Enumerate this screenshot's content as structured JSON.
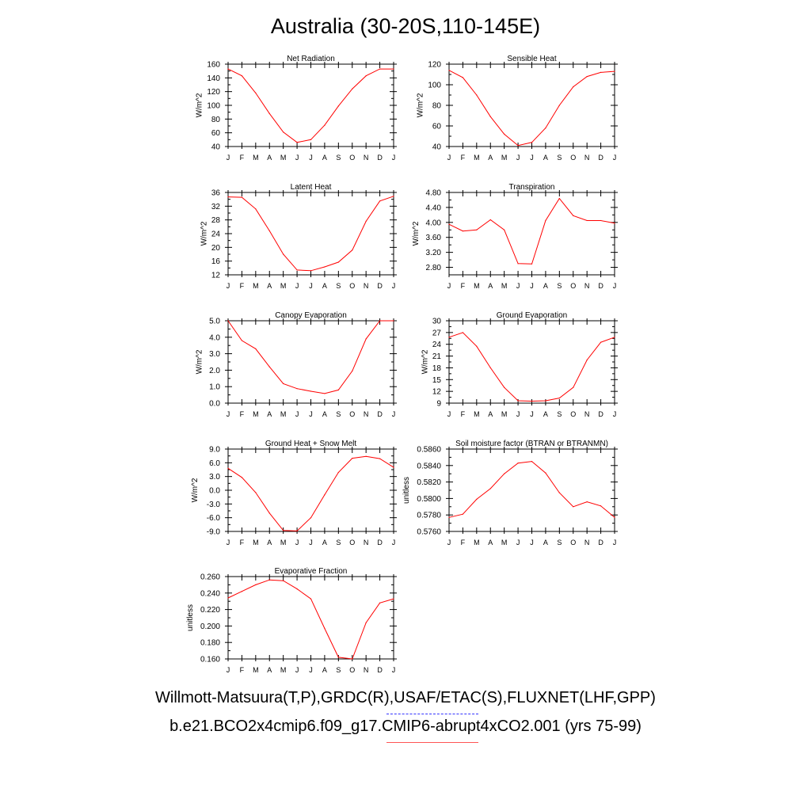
{
  "title": "Australia (30-20S,110-145E)",
  "legend": {
    "line1": "Willmott-Matsuura(T,P),GRDC(R),USAF/ETAC(S),FLUXNET(LHF,GPP)",
    "line2": "b.e21.BCO2x4cmip6.f09_g17.CMIP6-abrupt4xCO2.001 (yrs 75-99)",
    "line1_color": "#3333ff",
    "line2_color": "#ff0000"
  },
  "chart_data": [
    {
      "type": "line",
      "title": "Net Radiation",
      "ylabel": "W/m^2",
      "x": [
        "J",
        "F",
        "M",
        "A",
        "M",
        "J",
        "J",
        "A",
        "S",
        "O",
        "N",
        "D",
        "J"
      ],
      "ylim": [
        40,
        160
      ],
      "yticks": [
        "40",
        "60",
        "80",
        "100",
        "120",
        "140",
        "160"
      ],
      "series": [
        {
          "values": [
            153,
            143,
            118,
            88,
            61,
            46,
            50,
            71,
            99,
            124,
            143,
            153,
            153
          ],
          "color": "#ff0000"
        }
      ]
    },
    {
      "type": "line",
      "title": "Sensible Heat",
      "ylabel": "W/m^2",
      "x": [
        "J",
        "F",
        "M",
        "A",
        "M",
        "J",
        "J",
        "A",
        "S",
        "O",
        "N",
        "D",
        "J"
      ],
      "ylim": [
        40,
        120
      ],
      "yticks": [
        "40",
        "60",
        "80",
        "100",
        "120"
      ],
      "series": [
        {
          "values": [
            114,
            107,
            90,
            69,
            52,
            41,
            44,
            58,
            80,
            98,
            108,
            112,
            113
          ],
          "color": "#ff0000"
        }
      ]
    },
    {
      "type": "line",
      "title": "Latent Heat",
      "ylabel": "W/m^2",
      "x": [
        "J",
        "F",
        "M",
        "A",
        "M",
        "J",
        "J",
        "A",
        "S",
        "O",
        "N",
        "D",
        "J"
      ],
      "ylim": [
        12,
        36
      ],
      "yticks": [
        "12",
        "16",
        "20",
        "24",
        "28",
        "32",
        "36"
      ],
      "series": [
        {
          "values": [
            34.7,
            34.6,
            31.2,
            24.8,
            18.0,
            13.4,
            13.2,
            14.3,
            15.7,
            19.2,
            27.6,
            33.5,
            34.9
          ],
          "color": "#ff0000"
        }
      ]
    },
    {
      "type": "line",
      "title": "Transpiration",
      "ylabel": "W/m^2",
      "x": [
        "J",
        "F",
        "M",
        "A",
        "M",
        "J",
        "J",
        "A",
        "S",
        "O",
        "N",
        "D",
        "J"
      ],
      "ylim": [
        2.6,
        4.8
      ],
      "yticks": [
        "2.80",
        "3.20",
        "3.60",
        "4.00",
        "4.40",
        "4.80"
      ],
      "series": [
        {
          "values": [
            3.95,
            3.77,
            3.8,
            4.07,
            3.8,
            2.9,
            2.89,
            4.05,
            4.64,
            4.18,
            4.05,
            4.05,
            3.98
          ],
          "color": "#ff0000"
        }
      ]
    },
    {
      "type": "line",
      "title": "Canopy Evaporation",
      "ylabel": "W/m^2",
      "x": [
        "J",
        "F",
        "M",
        "A",
        "M",
        "J",
        "J",
        "A",
        "S",
        "O",
        "N",
        "D",
        "J"
      ],
      "ylim": [
        0.0,
        5.0
      ],
      "yticks": [
        "0.0",
        "1.0",
        "2.0",
        "3.0",
        "4.0",
        "5.0"
      ],
      "series": [
        {
          "values": [
            5.0,
            3.8,
            3.3,
            2.2,
            1.18,
            0.88,
            0.72,
            0.58,
            0.8,
            1.95,
            3.9,
            5.0,
            5.0
          ],
          "color": "#ff0000"
        }
      ]
    },
    {
      "type": "line",
      "title": "Ground Evaporation",
      "ylabel": "W/m^2",
      "x": [
        "J",
        "F",
        "M",
        "A",
        "M",
        "J",
        "J",
        "A",
        "S",
        "O",
        "N",
        "D",
        "J"
      ],
      "ylim": [
        9,
        30
      ],
      "yticks": [
        "9",
        "12",
        "15",
        "18",
        "21",
        "24",
        "27",
        "30"
      ],
      "series": [
        {
          "values": [
            25.8,
            27.0,
            23.5,
            18.0,
            13.0,
            9.6,
            9.5,
            9.6,
            10.3,
            13.0,
            20.0,
            24.5,
            25.8
          ],
          "color": "#ff0000"
        }
      ]
    },
    {
      "type": "line",
      "title": "Ground Heat + Snow Melt",
      "ylabel": "W/m^2",
      "x": [
        "J",
        "F",
        "M",
        "A",
        "M",
        "J",
        "J",
        "A",
        "S",
        "O",
        "N",
        "D",
        "J"
      ],
      "ylim": [
        -9.0,
        9.0
      ],
      "yticks": [
        "-9.0",
        "-6.0",
        "-3.0",
        "0.0",
        "3.0",
        "6.0",
        "9.0"
      ],
      "series": [
        {
          "values": [
            4.8,
            2.8,
            -0.5,
            -5.0,
            -8.8,
            -8.9,
            -6.0,
            -1.0,
            3.9,
            7.0,
            7.4,
            6.9,
            5.0
          ],
          "color": "#ff0000"
        }
      ]
    },
    {
      "type": "line",
      "title": "Soil moisture factor (BTRAN or BTRANMN)",
      "ylabel": "unitless",
      "x": [
        "J",
        "F",
        "M",
        "A",
        "M",
        "J",
        "J",
        "A",
        "S",
        "O",
        "N",
        "D",
        "J"
      ],
      "ylim": [
        0.576,
        0.586
      ],
      "yticks": [
        "0.5760",
        "0.5780",
        "0.5800",
        "0.5820",
        "0.5840",
        "0.5860"
      ],
      "series": [
        {
          "values": [
            0.5777,
            0.5781,
            0.5799,
            0.5812,
            0.583,
            0.5843,
            0.5845,
            0.5831,
            0.5807,
            0.579,
            0.5796,
            0.5791,
            0.5777
          ],
          "color": "#ff0000"
        }
      ]
    },
    {
      "type": "line",
      "title": "Evaporative Fraction",
      "ylabel": "unitless",
      "x": [
        "J",
        "F",
        "M",
        "A",
        "M",
        "J",
        "J",
        "A",
        "S",
        "O",
        "N",
        "D",
        "J"
      ],
      "ylim": [
        0.16,
        0.26
      ],
      "yticks": [
        "0.160",
        "0.180",
        "0.200",
        "0.220",
        "0.240",
        "0.260"
      ],
      "series": [
        {
          "values": [
            0.234,
            0.242,
            0.25,
            0.256,
            0.255,
            0.245,
            0.233,
            0.197,
            0.162,
            0.16,
            0.204,
            0.228,
            0.233
          ],
          "color": "#ff0000"
        }
      ]
    }
  ]
}
